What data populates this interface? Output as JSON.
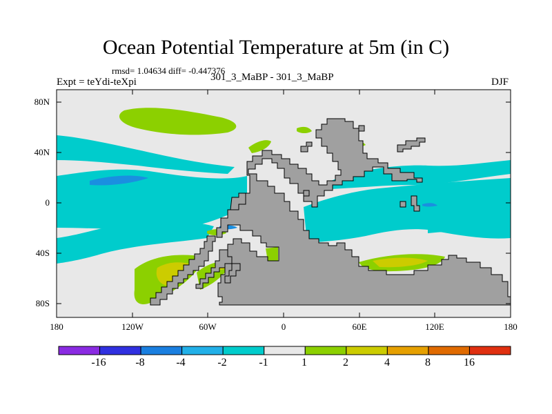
{
  "title": "Ocean Potential Temperature at 5m (in C)",
  "stats": "rmsd= 1.04634 diff= -0.447376",
  "experiment": "Expt = teYdi-teXpi",
  "case": "301_3_MaBP - 301_3_MaBP",
  "season": "DJF",
  "map": {
    "y_ticks": [
      "80N",
      "40N",
      "0",
      "40S",
      "80S"
    ],
    "x_ticks": [
      "180",
      "120W",
      "60W",
      "0",
      "60E",
      "120E",
      "180"
    ],
    "colors": {
      "background": "#e8e8e8",
      "land": "#a0a0a0",
      "cyan": "#00cccc",
      "blue_light": "#22a6e0",
      "green": "#8cd000",
      "yellow": "#cccc00"
    }
  },
  "colorbar": {
    "labels": [
      "-16",
      "-8",
      "-4",
      "-2",
      "-1",
      "1",
      "2",
      "4",
      "8",
      "16"
    ],
    "colors": [
      "#8a2be2",
      "#3030e0",
      "#1a7fe0",
      "#22b0e8",
      "#00cccc",
      "#e8e8e8",
      "#8cd000",
      "#cccc00",
      "#e6a000",
      "#e06a00",
      "#e03010"
    ]
  }
}
